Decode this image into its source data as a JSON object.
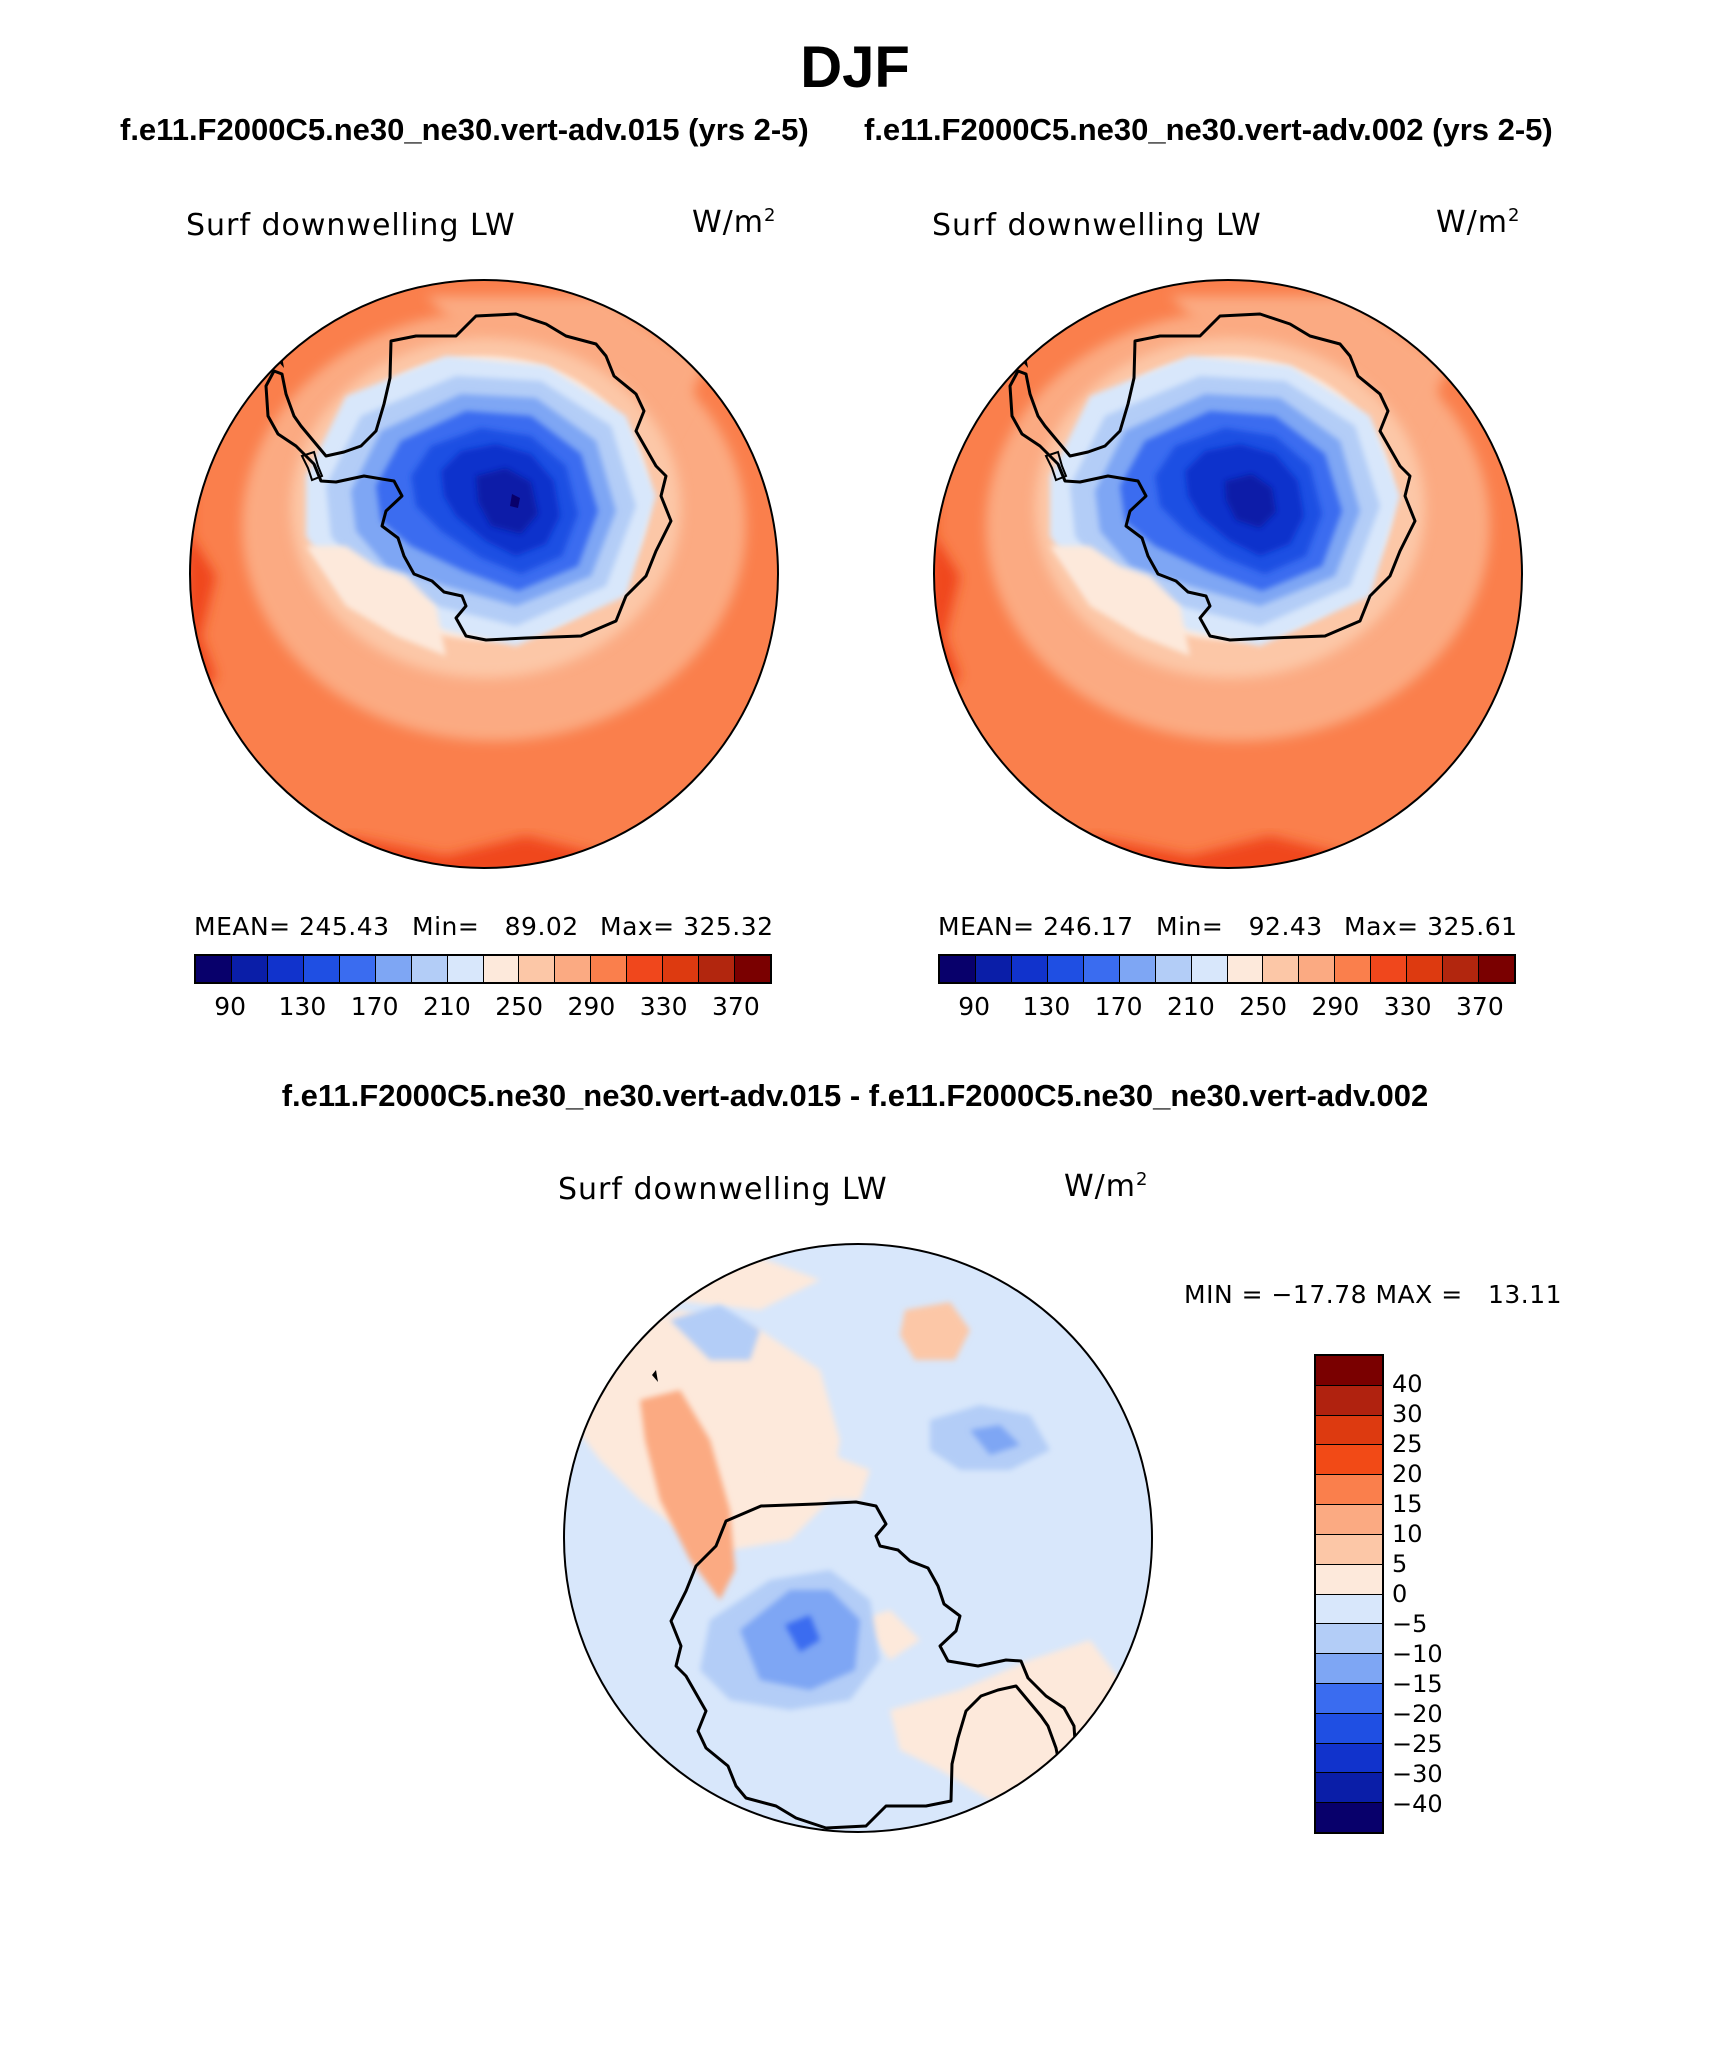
{
  "title": "DJF",
  "subtitle_left": "f.e11.F2000C5.ne30_ne30.vert-adv.015 (yrs 2-5)",
  "subtitle_right": "f.e11.F2000C5.ne30_ne30.vert-adv.002 (yrs 2-5)",
  "diff_title": "f.e11.F2000C5.ne30_ne30.vert-adv.015 - f.e11.F2000C5.ne30_ne30.vert-adv.002",
  "panels": [
    {
      "variable": "Surf downwelling LW",
      "units": "W/m",
      "units_sup": "2",
      "mean_label": "MEAN= 245.43",
      "min_label": "Min=   89.02",
      "max_label": "Max= 325.32"
    },
    {
      "variable": "Surf downwelling LW",
      "units": "W/m",
      "units_sup": "2",
      "mean_label": "MEAN= 246.17",
      "min_label": "Min=   92.43",
      "max_label": "Max= 325.61"
    }
  ],
  "diff_panel": {
    "variable": "Surf downwelling LW",
    "units": "W/m",
    "units_sup": "2",
    "minmax_label": "MIN = −17.78 MAX =   13.11"
  },
  "colorbar_main": {
    "colors": [
      "#08006b",
      "#0a1ea8",
      "#1133cc",
      "#1f4fe3",
      "#3a6cf0",
      "#7ea6f4",
      "#b3cdf7",
      "#d8e7fb",
      "#fde9db",
      "#fcc7a7",
      "#fbaa82",
      "#fa7f4c",
      "#f0471c",
      "#dd3a10",
      "#b2260e",
      "#7a0000"
    ],
    "ticks": [
      "90",
      "130",
      "170",
      "210",
      "250",
      "290",
      "330",
      "370"
    ]
  },
  "colorbar_diff": {
    "colors": [
      "#7a0000",
      "#b0220f",
      "#dd3a10",
      "#f24a16",
      "#fa7f4c",
      "#fbaa82",
      "#fcc7a7",
      "#fde9db",
      "#d8e7fb",
      "#b3cdf7",
      "#7ea6f4",
      "#3a6cf0",
      "#1f4fe3",
      "#1133cc",
      "#0a1ea8",
      "#08006b"
    ],
    "ticks": [
      "40",
      "30",
      "25",
      "20",
      "15",
      "10",
      "5",
      "0",
      "−5",
      "−10",
      "−15",
      "−20",
      "−25",
      "−30",
      "−40"
    ]
  },
  "chart_data": {
    "type": "heatmap",
    "title": "DJF",
    "season": "DJF",
    "projection": "south polar stereographic",
    "variable": "Surf downwelling LW",
    "units": "W/m^2",
    "panels": [
      {
        "case": "f.e11.F2000C5.ne30_ne30.vert-adv.015 (yrs 2-5)",
        "mean": 245.43,
        "min": 89.02,
        "max": 325.32
      },
      {
        "case": "f.e11.F2000C5.ne30_ne30.vert-adv.002 (yrs 2-5)",
        "mean": 246.17,
        "min": 92.43,
        "max": 325.61
      },
      {
        "case": "f.e11.F2000C5.ne30_ne30.vert-adv.015 - f.e11.F2000C5.ne30_ne30.vert-adv.002",
        "min": -17.78,
        "max": 13.11
      }
    ],
    "contour_levels_main": [
      90,
      110,
      130,
      150,
      170,
      190,
      210,
      230,
      250,
      270,
      290,
      310,
      330,
      350,
      370
    ],
    "contour_levels_diff": [
      -40,
      -30,
      -25,
      -20,
      -15,
      -10,
      -5,
      0,
      5,
      10,
      15,
      20,
      25,
      30,
      40
    ]
  }
}
